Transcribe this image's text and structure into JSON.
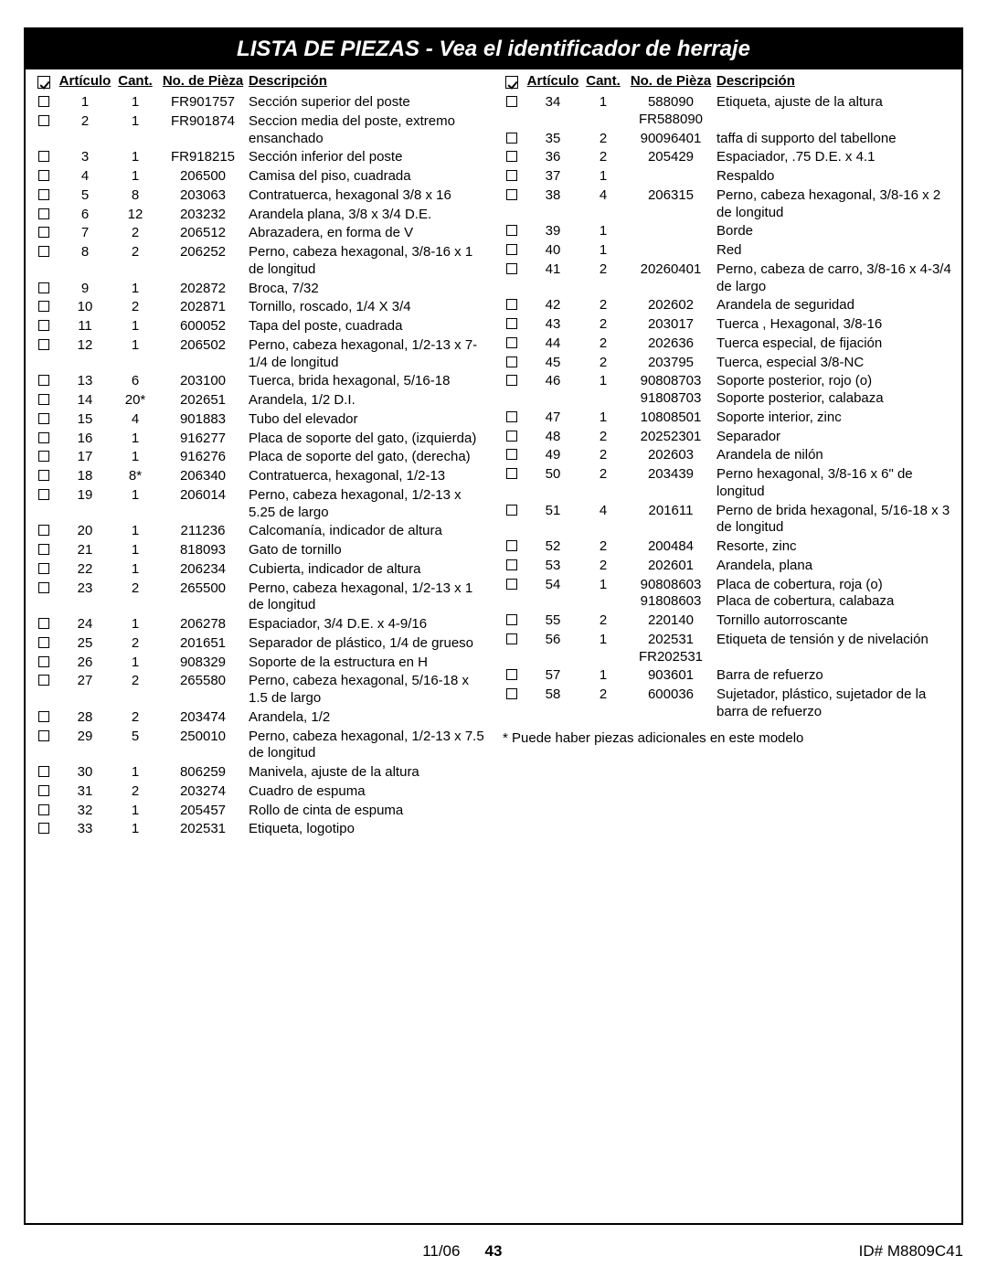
{
  "title": "LISTA DE PIEZAS - Vea el identificador de herraje",
  "headers": {
    "articulo": "Artículo",
    "cant": "Cant.",
    "partno": "No. de Pièza",
    "descripcion": "Descripción"
  },
  "footnote": "*  Puede haber piezas adicionales en este modelo",
  "footer": {
    "page": "43",
    "date": "11/06",
    "id": "ID#   M8809C41"
  },
  "left": [
    {
      "a": "1",
      "c": "1",
      "p": "FR901757",
      "d": "Sección superior del poste"
    },
    {
      "a": "2",
      "c": "1",
      "p": "FR901874",
      "d": "Seccion media del poste, extremo ensanchado"
    },
    {
      "a": "3",
      "c": "1",
      "p": "FR918215",
      "d": "Sección inferior del poste"
    },
    {
      "a": "4",
      "c": "1",
      "p": "206500",
      "d": "Camisa del piso, cuadrada"
    },
    {
      "a": "5",
      "c": "8",
      "p": "203063",
      "d": "Contratuerca, hexagonal 3/8 x 16"
    },
    {
      "a": "6",
      "c": "12",
      "p": "203232",
      "d": "Arandela plana, 3/8 x 3/4 D.E."
    },
    {
      "a": "7",
      "c": "2",
      "p": "206512",
      "d": "Abrazadera, en forma de V"
    },
    {
      "a": "8",
      "c": "2",
      "p": "206252",
      "d": "Perno, cabeza hexagonal, 3/8-16 x 1 de longitud"
    },
    {
      "a": "9",
      "c": "1",
      "p": "202872",
      "d": "Broca, 7/32"
    },
    {
      "a": "10",
      "c": "2",
      "p": "202871",
      "d": "Tornillo, roscado, 1/4 X 3/4"
    },
    {
      "a": "11",
      "c": "1",
      "p": "600052",
      "d": "Tapa del poste, cuadrada"
    },
    {
      "a": "12",
      "c": "1",
      "p": "206502",
      "d": "Perno, cabeza hexagonal, 1/2-13 x 7-1/4 de longitud"
    },
    {
      "a": "13",
      "c": "6",
      "p": "203100",
      "d": "Tuerca, brida hexagonal, 5/16-18"
    },
    {
      "a": "14",
      "c": "20*",
      "p": "202651",
      "d": "Arandela, 1/2 D.I."
    },
    {
      "a": "15",
      "c": "4",
      "p": "901883",
      "d": "Tubo del elevador"
    },
    {
      "a": "16",
      "c": "1",
      "p": "916277",
      "d": "Placa de soporte del gato, (izquierda)"
    },
    {
      "a": "17",
      "c": "1",
      "p": "916276",
      "d": "Placa de soporte del gato, (derecha)"
    },
    {
      "a": "18",
      "c": "8*",
      "p": "206340",
      "d": "Contratuerca, hexagonal, 1/2-13"
    },
    {
      "a": "19",
      "c": "1",
      "p": "206014",
      "d": "Perno, cabeza hexagonal, 1/2-13 x 5.25 de largo"
    },
    {
      "a": "20",
      "c": "1",
      "p": "211236",
      "d": "Calcomanía, indicador de altura"
    },
    {
      "a": "21",
      "c": "1",
      "p": "818093",
      "d": "Gato de tornillo"
    },
    {
      "a": "22",
      "c": "1",
      "p": "206234",
      "d": "Cubierta, indicador de altura"
    },
    {
      "a": "23",
      "c": "2",
      "p": "265500",
      "d": "Perno, cabeza hexagonal, 1/2-13 x 1 de longitud"
    },
    {
      "a": "24",
      "c": "1",
      "p": "206278",
      "d": "Espaciador, 3/4 D.E. x 4-9/16"
    },
    {
      "a": "25",
      "c": "2",
      "p": "201651",
      "d": "Separador de plástico, 1/4  de grueso"
    },
    {
      "a": "26",
      "c": "1",
      "p": "908329",
      "d": "Soporte de la estructura en H"
    },
    {
      "a": "27",
      "c": "2",
      "p": "265580",
      "d": "Perno, cabeza hexagonal, 5/16-18 x 1.5 de largo"
    },
    {
      "a": "28",
      "c": "2",
      "p": "203474",
      "d": "Arandela, 1/2"
    },
    {
      "a": "29",
      "c": "5",
      "p": "250010",
      "d": "Perno, cabeza hexagonal, 1/2-13 x 7.5 de longitud"
    },
    {
      "a": "30",
      "c": "1",
      "p": "806259",
      "d": "Manivela, ajuste de la altura"
    },
    {
      "a": "31",
      "c": "2",
      "p": "203274",
      "d": "Cuadro de espuma"
    },
    {
      "a": "32",
      "c": "1",
      "p": "205457",
      "d": "Rollo de cinta de espuma"
    },
    {
      "a": "33",
      "c": "1",
      "p": "202531",
      "d": "Etiqueta, logotipo"
    }
  ],
  "right": [
    {
      "a": "34",
      "c": "1",
      "p": "588090",
      "p2": "FR588090",
      "d": "Etiqueta, ajuste de la altura"
    },
    {
      "a": "35",
      "c": "2",
      "p": "90096401",
      "d": "taffa di supporto del tabellone"
    },
    {
      "a": "36",
      "c": "2",
      "p": "205429",
      "d": "Espaciador, .75 D.E. x 4.1"
    },
    {
      "a": "37",
      "c": "1",
      "p": "",
      "d": "Respaldo"
    },
    {
      "a": "38",
      "c": "4",
      "p": "206315",
      "d": "Perno, cabeza hexagonal, 3/8-16 x 2 de longitud"
    },
    {
      "a": "39",
      "c": "1",
      "p": "",
      "d": "Borde"
    },
    {
      "a": "40",
      "c": "1",
      "p": "",
      "d": "Red"
    },
    {
      "a": "41",
      "c": "2",
      "p": "20260401",
      "d": "Perno, cabeza de carro, 3/8-16 x 4-3/4 de largo"
    },
    {
      "a": "42",
      "c": "2",
      "p": "202602",
      "d": "Arandela de seguridad"
    },
    {
      "a": "43",
      "c": "2",
      "p": "203017",
      "d": "Tuerca , Hexagonal, 3/8-16"
    },
    {
      "a": "44",
      "c": "2",
      "p": "202636",
      "d": "Tuerca especial, de fijación"
    },
    {
      "a": "45",
      "c": "2",
      "p": "203795",
      "d": "Tuerca, especial 3/8-NC"
    },
    {
      "a": "46",
      "c": "1",
      "p": "90808703",
      "p2": "91808703",
      "d": "Soporte posterior, rojo (o)",
      "d2": "Soporte posterior, calabaza"
    },
    {
      "a": "47",
      "c": "1",
      "p": "10808501",
      "d": "Soporte interior, zinc"
    },
    {
      "a": "48",
      "c": "2",
      "p": "20252301",
      "d": "Separador"
    },
    {
      "a": "49",
      "c": "2",
      "p": "202603",
      "d": "Arandela de nilón"
    },
    {
      "a": "50",
      "c": "2",
      "p": "203439",
      "d": "Perno hexagonal, 3/8-16 x 6\" de longitud"
    },
    {
      "a": "51",
      "c": "4",
      "p": "201611",
      "d": "Perno de brida hexagonal, 5/16-18 x 3 de longitud"
    },
    {
      "a": "52",
      "c": "2",
      "p": "200484",
      "d": "Resorte, zinc"
    },
    {
      "a": "53",
      "c": "2",
      "p": "202601",
      "d": "Arandela, plana"
    },
    {
      "a": "54",
      "c": "1",
      "p": "90808603",
      "p2": "91808603",
      "d": "Placa de cobertura, roja  (o)",
      "d2": "Placa de cobertura, calabaza"
    },
    {
      "a": "55",
      "c": "2",
      "p": "220140",
      "d": "Tornillo autorroscante"
    },
    {
      "a": "56",
      "c": "1",
      "p": "202531",
      "p2": "FR202531",
      "d": "Etiqueta de tensión y de nivelación"
    },
    {
      "a": "57",
      "c": "1",
      "p": "903601",
      "d": "Barra de refuerzo"
    },
    {
      "a": "58",
      "c": "2",
      "p": "600036",
      "d": "Sujetador, plástico, sujetador de la barra de refuerzo"
    }
  ]
}
